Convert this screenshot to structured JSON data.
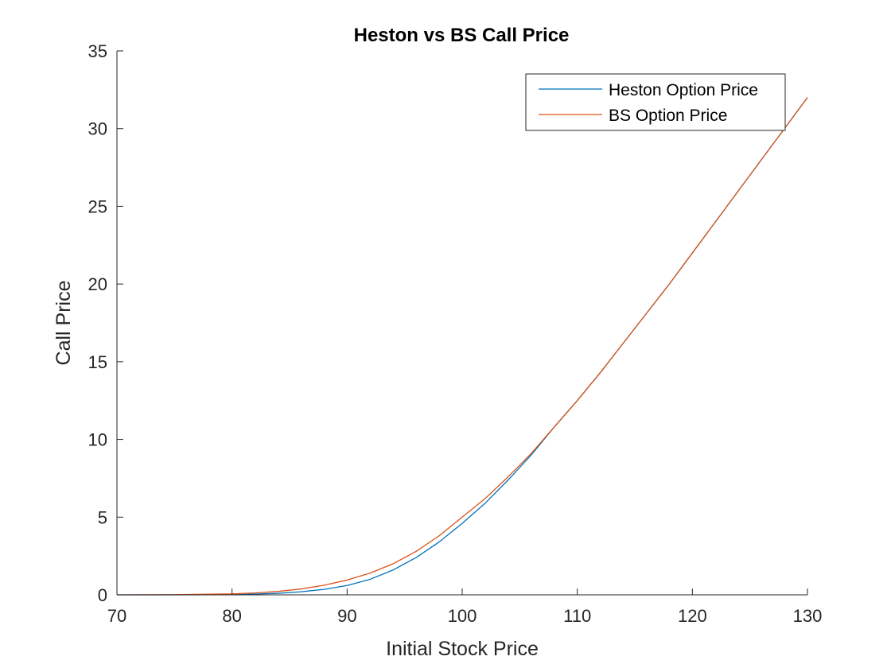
{
  "chart_data": {
    "type": "line",
    "title": "Heston vs BS Call Price",
    "xlabel": "Initial Stock Price",
    "ylabel": "Call Price",
    "xlim": [
      70,
      130
    ],
    "ylim": [
      0,
      35
    ],
    "xticks": [
      70,
      80,
      90,
      100,
      110,
      120,
      130
    ],
    "yticks": [
      0,
      5,
      10,
      15,
      20,
      25,
      30,
      35
    ],
    "grid": false,
    "legend_position": "top-right",
    "series": [
      {
        "name": "Heston Option Price",
        "color": "#0072BD",
        "x": [
          70,
          75,
          80,
          82,
          84,
          86,
          88,
          90,
          92,
          94,
          96,
          98,
          100,
          102,
          104,
          106,
          108,
          110,
          112,
          114,
          116,
          118,
          120,
          122,
          124,
          126,
          128,
          130
        ],
        "y": [
          0.0,
          0.0,
          0.02,
          0.05,
          0.1,
          0.2,
          0.35,
          0.6,
          1.0,
          1.6,
          2.4,
          3.4,
          4.6,
          5.9,
          7.4,
          9.0,
          10.8,
          12.5,
          14.3,
          16.2,
          18.1,
          20.0,
          22.0,
          24.0,
          26.0,
          28.0,
          30.0,
          32.0
        ]
      },
      {
        "name": "BS Option Price",
        "color": "#D95319",
        "x": [
          70,
          75,
          80,
          82,
          84,
          86,
          88,
          90,
          92,
          94,
          96,
          98,
          100,
          102,
          104,
          106,
          108,
          110,
          112,
          114,
          116,
          118,
          120,
          122,
          124,
          126,
          128,
          130
        ],
        "y": [
          0.0,
          0.01,
          0.06,
          0.12,
          0.22,
          0.38,
          0.62,
          0.95,
          1.4,
          2.0,
          2.8,
          3.8,
          5.0,
          6.2,
          7.6,
          9.1,
          10.8,
          12.5,
          14.3,
          16.2,
          18.1,
          20.0,
          22.0,
          24.0,
          26.0,
          28.0,
          30.0,
          32.0
        ]
      }
    ]
  }
}
